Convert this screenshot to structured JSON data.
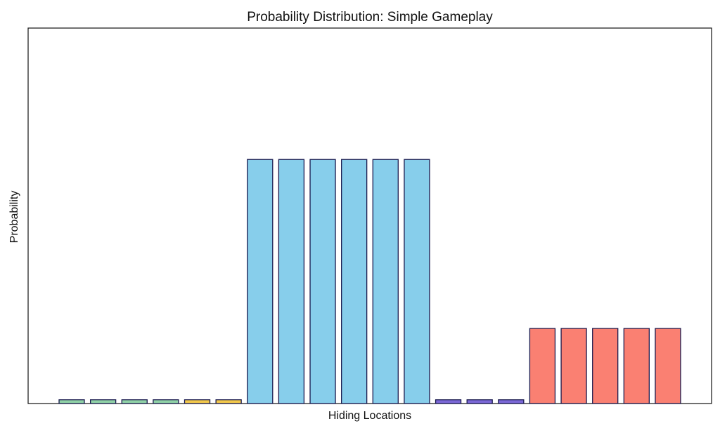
{
  "chart_data": {
    "type": "bar",
    "title": "Probability Distribution: Simple Gameplay",
    "xlabel": "Hiding Locations",
    "ylabel": "Probability",
    "ylim": [
      0,
      1
    ],
    "grid": false,
    "legend": "none",
    "x_ticks_visible": false,
    "y_ticks_visible": false,
    "bar_edge_color": "#1a1a4e",
    "values": [
      0.01,
      0.01,
      0.01,
      0.01,
      0.01,
      0.01,
      0.65,
      0.65,
      0.65,
      0.65,
      0.65,
      0.65,
      0.01,
      0.01,
      0.01,
      0.2,
      0.2,
      0.2,
      0.2,
      0.2
    ],
    "colors": [
      "#8fd1a6",
      "#8fd1a6",
      "#8fd1a6",
      "#8fd1a6",
      "#f2c84b",
      "#f2c84b",
      "#87ceeb",
      "#87ceeb",
      "#87ceeb",
      "#87ceeb",
      "#87ceeb",
      "#87ceeb",
      "#7b68d6",
      "#7b68d6",
      "#7b68d6",
      "#fa8072",
      "#fa8072",
      "#fa8072",
      "#fa8072",
      "#fa8072"
    ]
  }
}
